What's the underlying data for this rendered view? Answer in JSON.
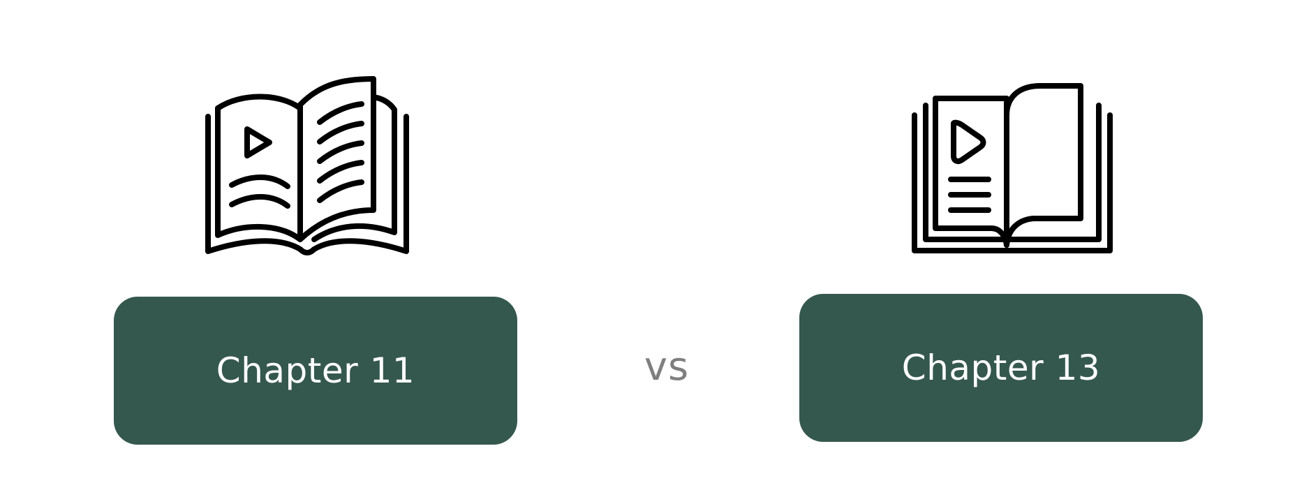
{
  "comparison": {
    "left": {
      "label": "Chapter 11",
      "icon": "open-book-with-play-icon"
    },
    "separator": "vs",
    "right": {
      "label": "Chapter 13",
      "icon": "video-book-icon"
    }
  },
  "colors": {
    "box_fill": "#35584e",
    "box_text": "#ffffff",
    "separator_text": "#7f7f7f",
    "icon_stroke": "#000000"
  }
}
